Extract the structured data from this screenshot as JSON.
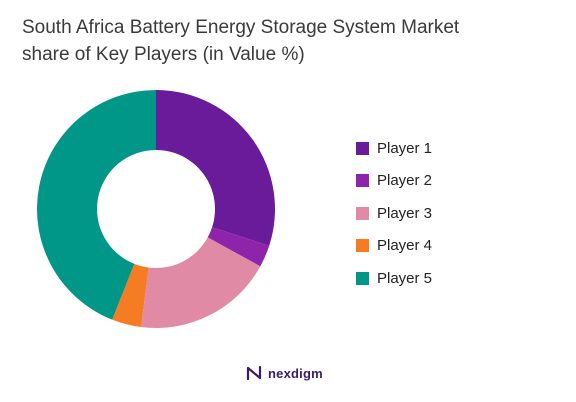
{
  "title_line1": "South Africa Battery Energy Storage System Market",
  "title_line2": "share of Key Players (in Value %)",
  "brand": {
    "name": "nexdigm",
    "icon": "nexdigm-logo-icon",
    "color": "#3b1b6e"
  },
  "chart_data": {
    "type": "pie",
    "donut": true,
    "title": "South Africa Battery Energy Storage System Market share of Key Players (in Value %)",
    "legend_position": "right",
    "categories": [
      "Player 1",
      "Player 2",
      "Player 3",
      "Player 4",
      "Player 5"
    ],
    "values": [
      30,
      3,
      19,
      4,
      44
    ],
    "colors": [
      "#6a1b9a",
      "#8e24aa",
      "#e08aa6",
      "#f57c23",
      "#009688"
    ]
  }
}
